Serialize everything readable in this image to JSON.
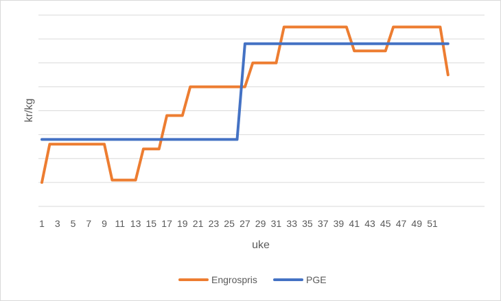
{
  "chart_data": {
    "type": "line",
    "title": "",
    "xlabel": "uke",
    "ylabel": "kr/kg",
    "x": [
      1,
      2,
      3,
      4,
      5,
      6,
      7,
      8,
      9,
      10,
      11,
      12,
      13,
      14,
      15,
      16,
      17,
      18,
      19,
      20,
      21,
      22,
      23,
      24,
      25,
      26,
      27,
      28,
      29,
      30,
      31,
      32,
      33,
      34,
      35,
      36,
      37,
      38,
      39,
      40,
      41,
      42,
      43,
      44,
      45,
      46,
      47,
      48,
      49,
      50,
      51,
      52,
      53
    ],
    "x_tick_labels": [
      "1",
      "3",
      "5",
      "7",
      "9",
      "11",
      "13",
      "15",
      "17",
      "19",
      "21",
      "23",
      "25",
      "27",
      "29",
      "31",
      "33",
      "35",
      "37",
      "39",
      "41",
      "43",
      "45",
      "47",
      "49",
      "51"
    ],
    "y_tick_labels_visible": false,
    "ylim": [
      0,
      8
    ],
    "grid": true,
    "legend_position": "bottom",
    "series": [
      {
        "name": "Engrospris",
        "color": "#ED7D31",
        "values": [
          1.0,
          2.6,
          2.6,
          2.6,
          2.6,
          2.6,
          2.6,
          2.6,
          2.6,
          1.1,
          1.1,
          1.1,
          1.1,
          2.4,
          2.4,
          2.4,
          3.8,
          3.8,
          3.8,
          5.0,
          5.0,
          5.0,
          5.0,
          5.0,
          5.0,
          5.0,
          5.0,
          6.0,
          6.0,
          6.0,
          6.0,
          7.5,
          7.5,
          7.5,
          7.5,
          7.5,
          7.5,
          7.5,
          7.5,
          7.5,
          6.5,
          6.5,
          6.5,
          6.5,
          6.5,
          7.5,
          7.5,
          7.5,
          7.5,
          7.5,
          7.5,
          7.5,
          5.5
        ]
      },
      {
        "name": "PGE",
        "color": "#4472C4",
        "values": [
          2.8,
          2.8,
          2.8,
          2.8,
          2.8,
          2.8,
          2.8,
          2.8,
          2.8,
          2.8,
          2.8,
          2.8,
          2.8,
          2.8,
          2.8,
          2.8,
          2.8,
          2.8,
          2.8,
          2.8,
          2.8,
          2.8,
          2.8,
          2.8,
          2.8,
          2.8,
          6.8,
          6.8,
          6.8,
          6.8,
          6.8,
          6.8,
          6.8,
          6.8,
          6.8,
          6.8,
          6.8,
          6.8,
          6.8,
          6.8,
          6.8,
          6.8,
          6.8,
          6.8,
          6.8,
          6.8,
          6.8,
          6.8,
          6.8,
          6.8,
          6.8,
          6.8,
          6.8
        ]
      }
    ]
  }
}
